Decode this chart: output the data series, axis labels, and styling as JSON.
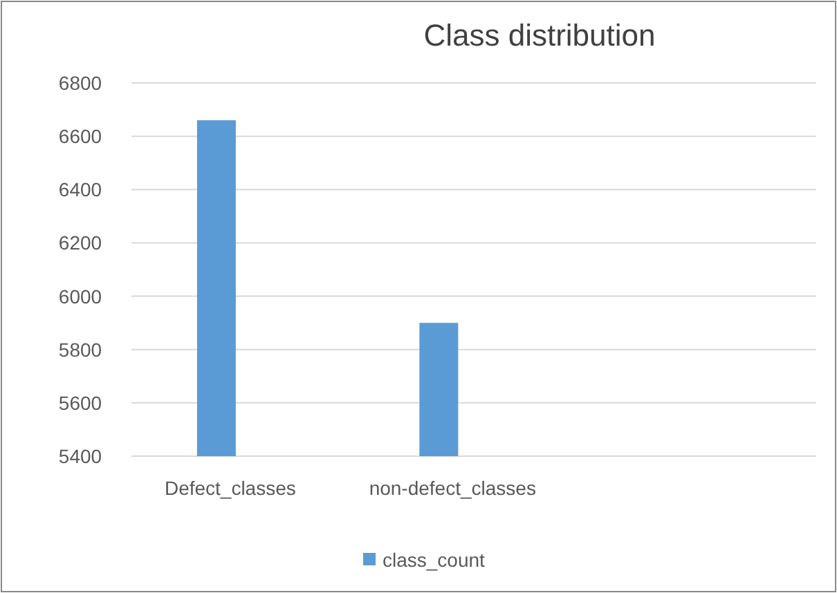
{
  "chart_data": {
    "type": "bar",
    "title": "Class distribution",
    "categories": [
      "Defect_classes",
      "non-defect_classes"
    ],
    "series": [
      {
        "name": "class_count",
        "color": "#5b9bd5",
        "values": [
          6660,
          5900
        ]
      }
    ],
    "ylim": [
      5400,
      6800
    ],
    "yticks": [
      5400,
      5600,
      5800,
      6000,
      6200,
      6400,
      6600,
      6800
    ],
    "grid": "y",
    "legend": "bottom"
  }
}
